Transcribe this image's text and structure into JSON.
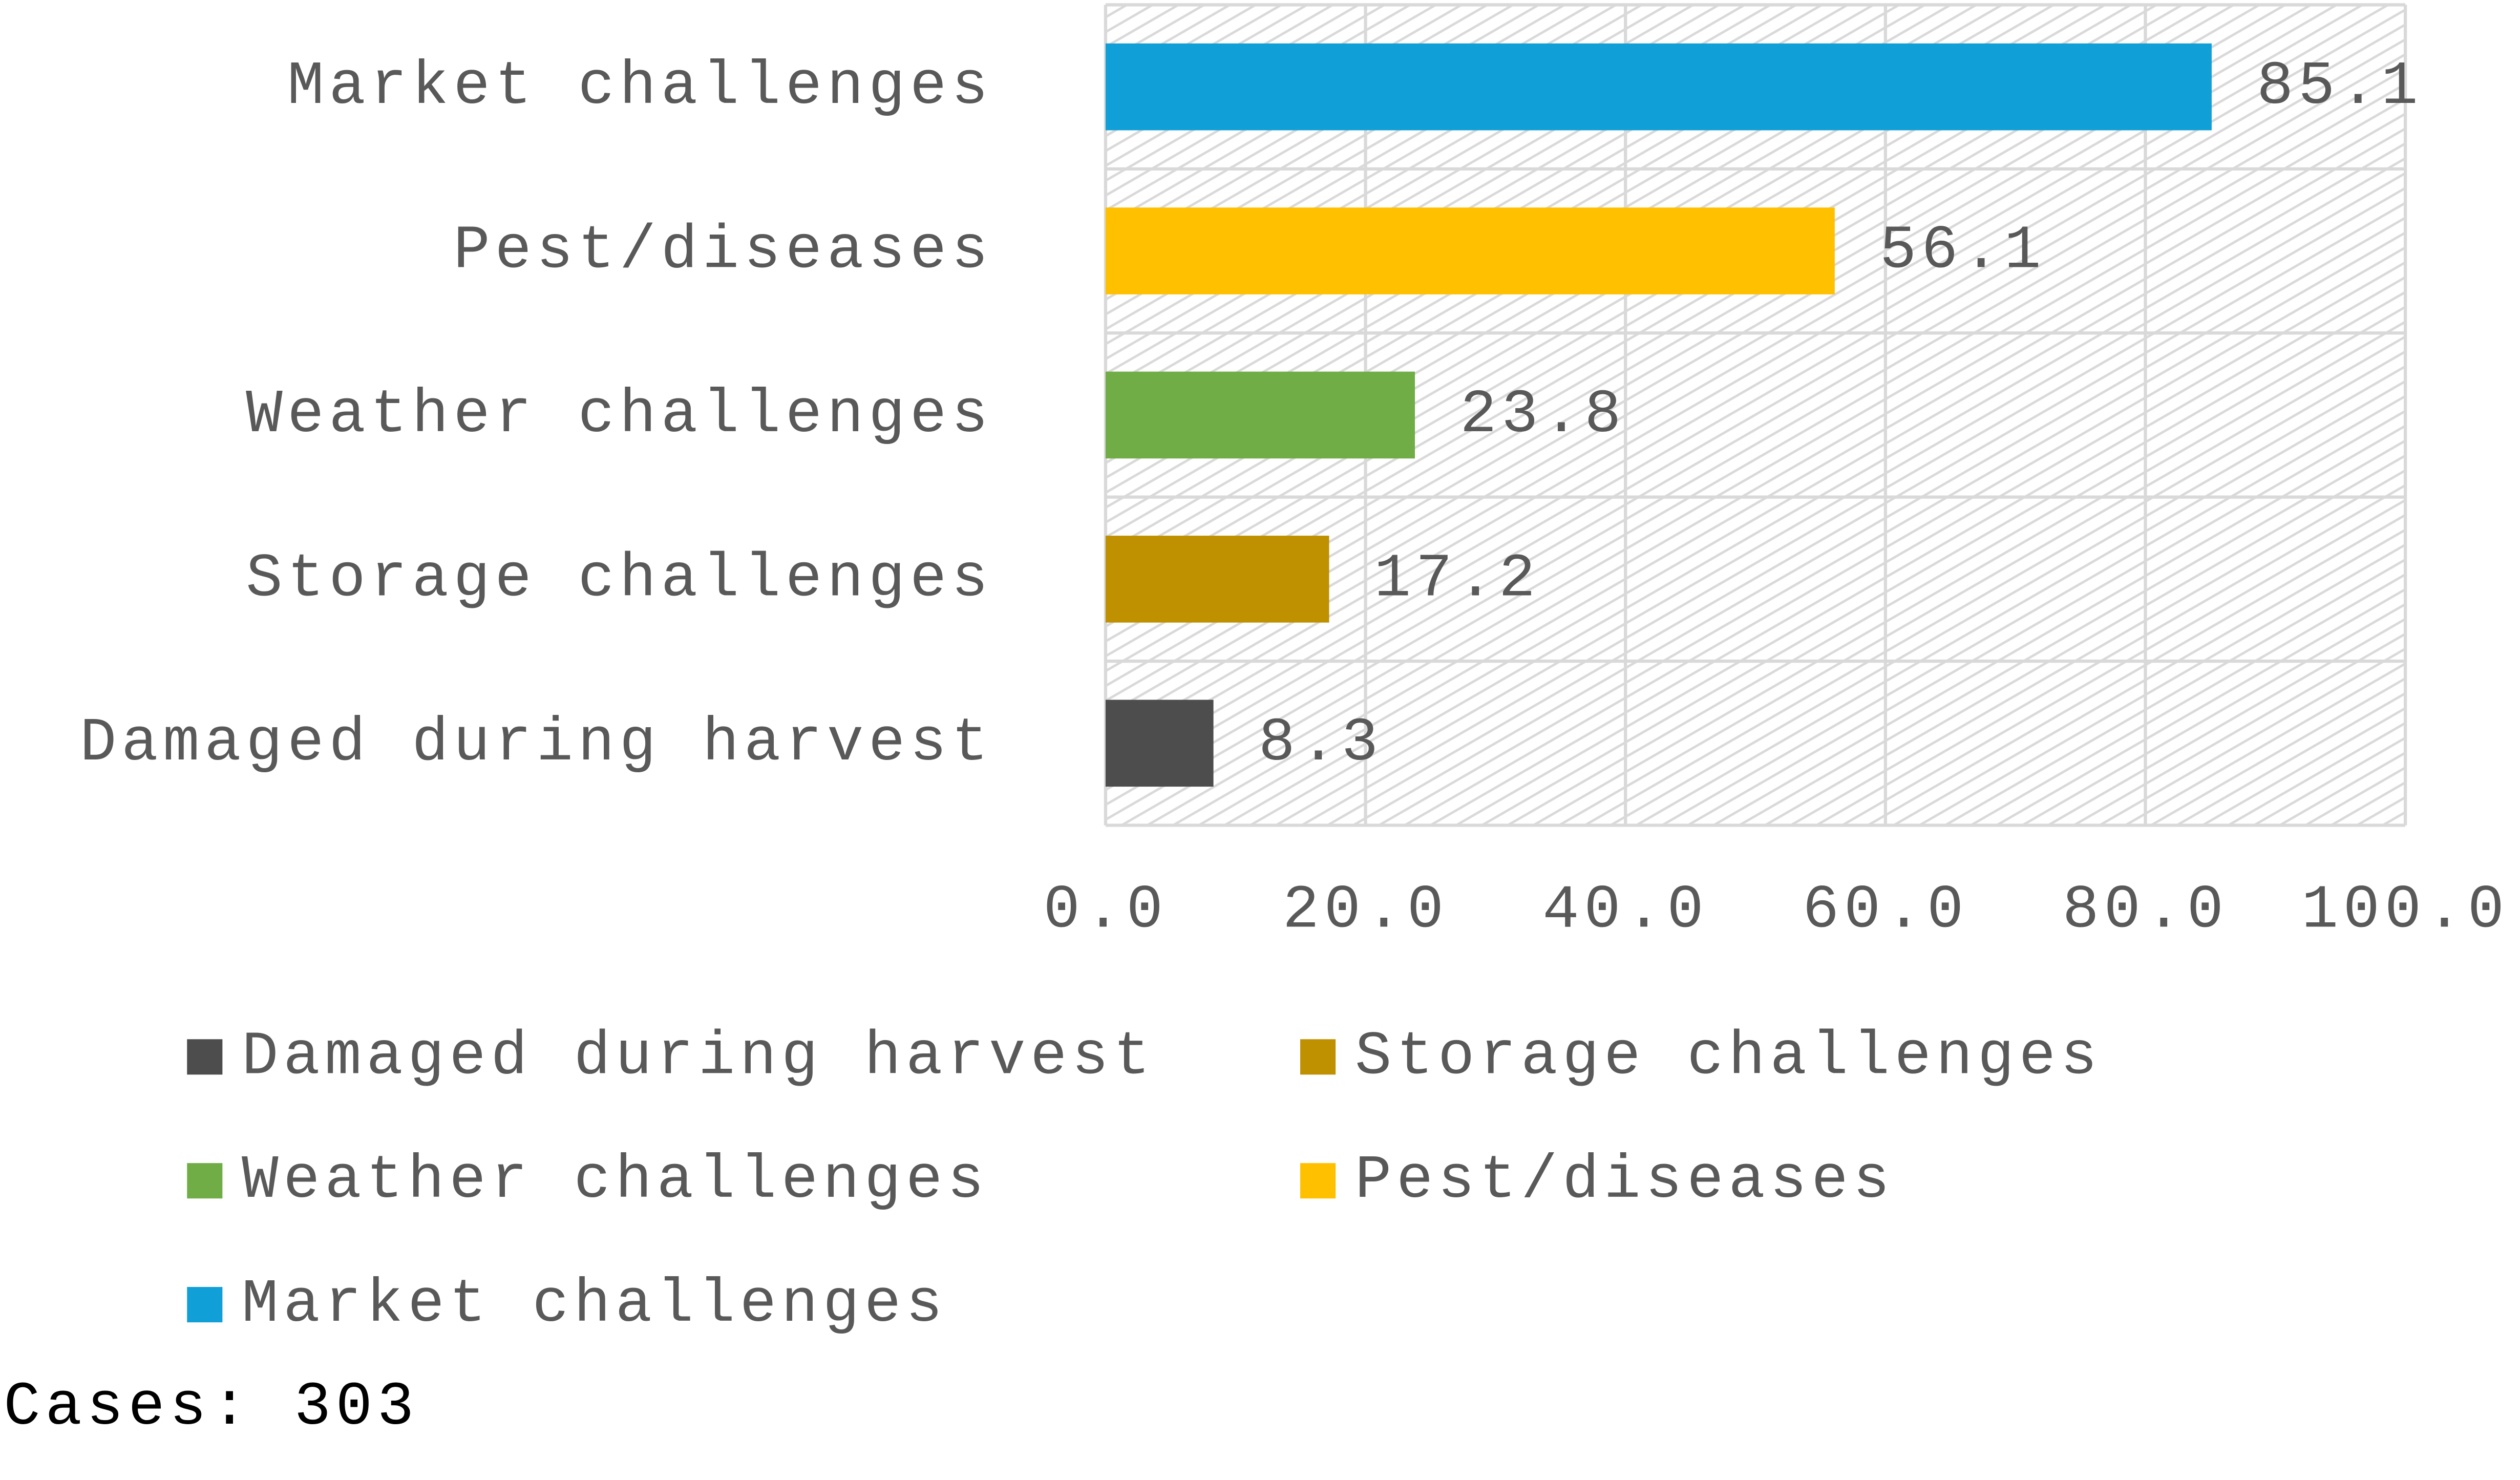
{
  "chart_data": {
    "type": "hbar",
    "categories": [
      "Market challenges",
      "Pest/diseases",
      "Weather challenges",
      "Storage challenges",
      "Damaged during harvest"
    ],
    "values": [
      85.1,
      56.1,
      23.8,
      17.2,
      8.3
    ],
    "colors": [
      "#119fd8",
      "#ffc000",
      "#70ad47",
      "#bf9000",
      "#4d4d4d"
    ],
    "xlim": [
      0,
      100
    ],
    "xticks": [
      {
        "value": 0,
        "label": "0.0"
      },
      {
        "value": 20,
        "label": "20.0"
      },
      {
        "value": 40,
        "label": "40.0"
      },
      {
        "value": 60,
        "label": "60.0"
      },
      {
        "value": 80,
        "label": "80.0"
      },
      {
        "value": 100,
        "label": "100.0"
      }
    ],
    "grid": true,
    "legend": "bottom",
    "footnote": "Cases: 303"
  }
}
